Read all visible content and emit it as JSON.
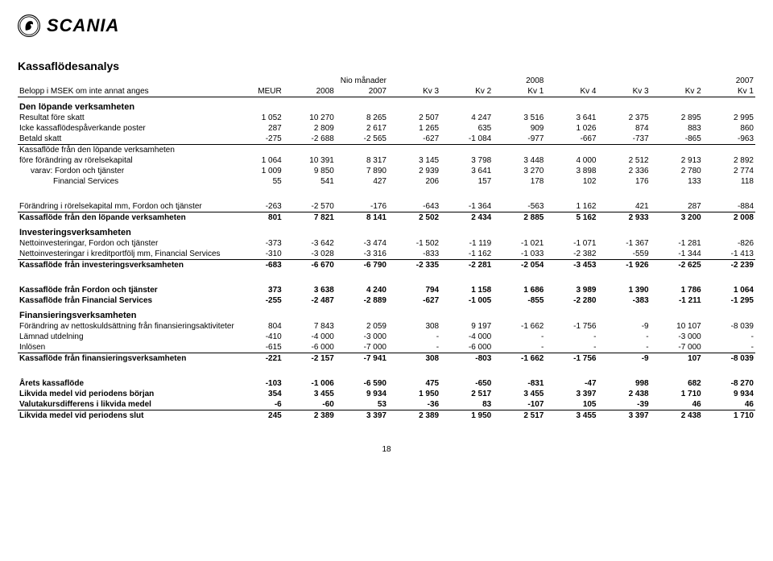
{
  "brand": "SCANIA",
  "title": "Kassaflödesanalys",
  "header": {
    "subhead_left": "Belopp i MSEK om inte annat anges",
    "period_top": "Nio månader",
    "year_a": "2008",
    "year_b": "2007",
    "cols": [
      "MEUR",
      "2008",
      "2007",
      "Kv 3",
      "Kv 2",
      "Kv 1",
      "Kv 4",
      "Kv 3",
      "Kv 2",
      "Kv 1"
    ]
  },
  "rows": [
    {
      "type": "section",
      "label": "Den löpande verksamheten"
    },
    {
      "label": "Resultat före skatt",
      "v": [
        "1 052",
        "10 270",
        "8 265",
        "2 507",
        "4 247",
        "3 516",
        "3 641",
        "2 375",
        "2 895",
        "2 995"
      ]
    },
    {
      "label": "Icke kassaflödespåverkande poster",
      "v": [
        "287",
        "2 809",
        "2 617",
        "1 265",
        "635",
        "909",
        "1 026",
        "874",
        "883",
        "860"
      ]
    },
    {
      "label": "Betald skatt",
      "rule_below": true,
      "v": [
        "-275",
        "-2 688",
        "-2 565",
        "-627",
        "-1 084",
        "-977",
        "-667",
        "-737",
        "-865",
        "-963"
      ]
    },
    {
      "label": "Kassaflöde från den löpande verksamheten",
      "nowrap_cont": "före förändring av rörelsekapital",
      "v": [
        "1 064",
        "10 391",
        "8 317",
        "3 145",
        "3 798",
        "3 448",
        "4 000",
        "2 512",
        "2 913",
        "2 892"
      ]
    },
    {
      "label": "varav:  Fordon och tjänster",
      "indent": true,
      "v": [
        "1 009",
        "9 850",
        "7 890",
        "2 939",
        "3 641",
        "3 270",
        "3 898",
        "2 336",
        "2 780",
        "2 774"
      ]
    },
    {
      "label": "Financial Services",
      "indent": true,
      "deep_indent": true,
      "v": [
        "55",
        "541",
        "427",
        "206",
        "157",
        "178",
        "102",
        "176",
        "133",
        "118"
      ]
    },
    {
      "type": "gap"
    },
    {
      "label": "Förändring i rörelsekapital mm, Fordon och tjänster",
      "rule_below": true,
      "v": [
        "-263",
        "-2 570",
        "-176",
        "-643",
        "-1 364",
        "-563",
        "1 162",
        "421",
        "287",
        "-884"
      ]
    },
    {
      "label": "Kassaflöde från den löpande verksamheten",
      "bold": true,
      "v": [
        "801",
        "7 821",
        "8 141",
        "2 502",
        "2 434",
        "2 885",
        "5 162",
        "2 933",
        "3 200",
        "2 008"
      ]
    },
    {
      "type": "section",
      "label": "Investeringsverksamheten"
    },
    {
      "label": "Nettoinvesteringar, Fordon och tjänster",
      "v": [
        "-373",
        "-3 642",
        "-3 474",
        "-1 502",
        "-1 119",
        "-1 021",
        "-1 071",
        "-1 367",
        "-1 281",
        "-826"
      ]
    },
    {
      "label": "Nettoinvesteringar i kreditportfölj mm, Financial Services",
      "rule_below": true,
      "v": [
        "-310",
        "-3 028",
        "-3 316",
        "-833",
        "-1 162",
        "-1 033",
        "-2 382",
        "-559",
        "-1 344",
        "-1 413"
      ]
    },
    {
      "label": "Kassaflöde från investeringsverksamheten",
      "bold": true,
      "v": [
        "-683",
        "-6 670",
        "-6 790",
        "-2 335",
        "-2 281",
        "-2 054",
        "-3 453",
        "-1 926",
        "-2 625",
        "-2 239"
      ]
    },
    {
      "type": "gap"
    },
    {
      "label": "Kassaflöde från Fordon och tjänster",
      "bold": true,
      "v": [
        "373",
        "3 638",
        "4 240",
        "794",
        "1 158",
        "1 686",
        "3 989",
        "1 390",
        "1 786",
        "1 064"
      ]
    },
    {
      "label": "Kassaflöde från Financial Services",
      "bold": true,
      "v": [
        "-255",
        "-2 487",
        "-2 889",
        "-627",
        "-1 005",
        "-855",
        "-2 280",
        "-383",
        "-1 211",
        "-1 295"
      ]
    },
    {
      "type": "section",
      "label": "Finansieringsverksamheten"
    },
    {
      "label": "Förändring av nettoskuldsättning från finansieringsaktiviteter",
      "v": [
        "804",
        "7 843",
        "2 059",
        "308",
        "9 197",
        "-1 662",
        "-1 756",
        "-9",
        "10 107",
        "-8 039"
      ]
    },
    {
      "label": "Lämnad utdelning",
      "v": [
        "-410",
        "-4 000",
        "-3 000",
        "-",
        "-4 000",
        "-",
        "-",
        "-",
        "-3 000",
        "-"
      ]
    },
    {
      "label": "Inlösen",
      "rule_below": true,
      "v": [
        "-615",
        "-6 000",
        "-7 000",
        "-",
        "-6 000",
        "-",
        "-",
        "-",
        "-7 000",
        "-"
      ]
    },
    {
      "label": "Kassaflöde från finansieringsverksamheten",
      "bold": true,
      "v": [
        "-221",
        "-2 157",
        "-7 941",
        "308",
        "-803",
        "-1 662",
        "-1 756",
        "-9",
        "107",
        "-8 039"
      ]
    },
    {
      "type": "gap"
    },
    {
      "label": "Årets kassaflöde",
      "bold": true,
      "v": [
        "-103",
        "-1 006",
        "-6 590",
        "475",
        "-650",
        "-831",
        "-47",
        "998",
        "682",
        "-8 270"
      ]
    },
    {
      "label": "Likvida medel vid periodens början",
      "bold": true,
      "v": [
        "354",
        "3 455",
        "9 934",
        "1 950",
        "2 517",
        "3 455",
        "3 397",
        "2 438",
        "1 710",
        "9 934"
      ]
    },
    {
      "label": "Valutakursdifferens i likvida medel",
      "bold": true,
      "rule_below": true,
      "v": [
        "-6",
        "-60",
        "53",
        "-36",
        "83",
        "-107",
        "105",
        "-39",
        "46",
        "46"
      ]
    },
    {
      "label": "Likvida medel vid periodens slut",
      "bold": true,
      "v": [
        "245",
        "2 389",
        "3 397",
        "2 389",
        "1 950",
        "2 517",
        "3 455",
        "3 397",
        "2 438",
        "1 710"
      ]
    }
  ],
  "page_number": "18"
}
